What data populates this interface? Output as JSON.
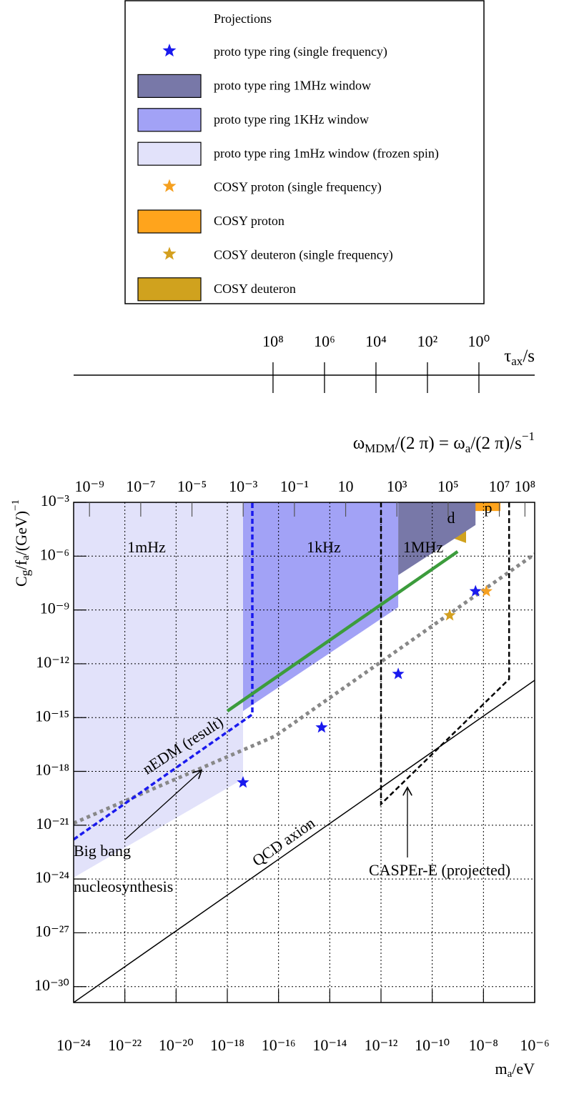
{
  "chart_data": {
    "type": "exclusion",
    "legend_title": "Projections",
    "xlim": [
      1e-24,
      1e-06
    ],
    "ylim": [
      1.3e-31,
      0.001
    ],
    "xscale": "log",
    "yscale": "log",
    "grid": true,
    "xlabel": [
      "m",
      "a",
      "/eV"
    ],
    "ylabel": [
      "C",
      "g",
      "/f",
      "a",
      "/(GeV)",
      "−1"
    ],
    "xticks": [
      {
        "value": 1e-24,
        "label": "10⁻²⁴"
      },
      {
        "value": 1e-22,
        "label": "10⁻²²"
      },
      {
        "value": 1e-20,
        "label": "10⁻²⁰"
      },
      {
        "value": 1e-18,
        "label": "10⁻¹⁸"
      },
      {
        "value": 1e-16,
        "label": "10⁻¹⁶"
      },
      {
        "value": 1e-14,
        "label": "10⁻¹⁴"
      },
      {
        "value": 1e-12,
        "label": "10⁻¹²"
      },
      {
        "value": 1e-10,
        "label": "10⁻¹⁰"
      },
      {
        "value": 1e-08,
        "label": "10⁻⁸"
      },
      {
        "value": 1e-06,
        "label": "10⁻⁶"
      }
    ],
    "yticks": [
      {
        "value": 0.001,
        "label": "10⁻³"
      },
      {
        "value": 1e-06,
        "label": "10⁻⁶"
      },
      {
        "value": 1e-09,
        "label": "10⁻⁹"
      },
      {
        "value": 1e-12,
        "label": "10⁻¹²"
      },
      {
        "value": 1e-15,
        "label": "10⁻¹⁵"
      },
      {
        "value": 1e-18,
        "label": "10⁻¹⁸"
      },
      {
        "value": 1e-21,
        "label": "10⁻²¹"
      },
      {
        "value": 1e-24,
        "label": "10⁻²⁴"
      },
      {
        "value": 1e-27,
        "label": "10⁻²⁷"
      },
      {
        "value": 1e-30,
        "label": "10⁻³⁰"
      }
    ],
    "x2label": [
      "ω",
      "MDM",
      "/(2 π) = ω",
      "a",
      "/(2 π)/s",
      "−1"
    ],
    "x2lim": [
      2.4e-10,
      240000000.0
    ],
    "x2ticks": [
      {
        "value": 1e-09,
        "label": "10⁻⁹"
      },
      {
        "value": 1e-07,
        "label": "10⁻⁷"
      },
      {
        "value": 1e-05,
        "label": "10⁻⁵"
      },
      {
        "value": 0.001,
        "label": "10⁻³"
      },
      {
        "value": 0.1,
        "label": "10⁻¹"
      },
      10,
      {
        "value": 1000,
        "label": "10³"
      },
      {
        "value": 100000,
        "label": "10⁵"
      },
      {
        "value": 10000000,
        "label": "10⁷"
      },
      {
        "value": 100000000,
        "label": "10⁸"
      }
    ],
    "taulabel": [
      "τ",
      "ax",
      "/s"
    ],
    "taulim": [
      5600000000000000.0,
      0.0068
    ],
    "tauticks": [
      {
        "value": 100000000,
        "label": "10⁸"
      },
      {
        "value": 1000000,
        "label": "10⁶"
      },
      {
        "value": 10000,
        "label": "10⁴"
      },
      {
        "value": 100,
        "label": "10²"
      },
      {
        "value": 1,
        "label": "10⁰"
      }
    ],
    "series": [
      {
        "name": "proto type ring (single frequency)",
        "color": "#1a1aee",
        "marker": "star",
        "x": [
          4.1e-18,
          4.8e-15,
          4.7e-12,
          4.9e-09
        ],
        "y": [
          2.4e-19,
          2.8e-16,
          2.7e-13,
          1.1e-08
        ]
      },
      {
        "name": "proto type ring 1MHz window",
        "color": "#7878a8",
        "marker": "box",
        "x": [
          4.7e-12,
          4.9e-09,
          4.9e-09,
          4.7e-12
        ],
        "y": [
          0.001,
          0.001,
          5.4e-05,
          8.7e-08
        ]
      },
      {
        "name": "proto type ring 1KHz window",
        "color": "#a2a2f6",
        "marker": "box",
        "x": [
          4.1e-18,
          4.7e-12,
          4.7e-12,
          4.1e-18
        ],
        "y": [
          0.001,
          0.001,
          1.4e-09,
          2.3e-15
        ]
      },
      {
        "name": "proto type ring 1mHz window (frozen spin)",
        "color": "#e2e2fa",
        "marker": "box",
        "x": [
          1e-24,
          4.1e-18,
          4.1e-18,
          1e-24
        ],
        "y": [
          0.001,
          0.001,
          3.8e-19,
          1.2e-24
        ]
      },
      {
        "name": "COSY proton (single frequency)",
        "color": "#f5a020",
        "marker": "star",
        "x": [
          1.3e-08
        ],
        "y": [
          1.1e-08
        ]
      },
      {
        "name": "COSY proton",
        "color": "#ffa41c",
        "marker": "box",
        "x": [
          4.3e-09,
          4.6e-08,
          4.6e-08,
          4.3e-09
        ],
        "y": [
          0.001,
          0.001,
          0.00033,
          0.00033
        ]
      },
      {
        "name": "COSY deuteron (single frequency)",
        "color": "#d4a020",
        "marker": "star",
        "x": [
          4.8e-10
        ],
        "y": [
          5e-10
        ]
      },
      {
        "name": "COSY deuteron",
        "color": "#d0a21e",
        "marker": "box",
        "x": [
          1.6e-10,
          2.1e-09,
          2.1e-09,
          1.6e-10
        ],
        "y": [
          0.001,
          0.001,
          5.4e-06,
          2.1e-05
        ]
      }
    ],
    "region_labels": [
      "1mHz",
      "1kHz",
      "1MHz",
      "d",
      "p"
    ],
    "curves": [
      {
        "label": [
          "Big bang",
          "nucleosynthesis"
        ],
        "color": "#888888",
        "style": "dotted",
        "x": [
          1e-24,
          7.4e-17,
          1e-06
        ],
        "y": [
          1.3e-21,
          9.3e-17,
          1.3e-06
        ]
      },
      {
        "label": [
          "nEDM (result)"
        ],
        "color": "#1a1aee",
        "style": "dashed",
        "x": [
          1e-24,
          9.5e-18,
          9.5e-18
        ],
        "y": [
          1.6e-22,
          1.5e-15,
          0.001
        ]
      },
      {
        "label": [
          "QCD axion"
        ],
        "color": "#000000",
        "style": "thin",
        "x": [
          1e-24,
          1e-06
        ],
        "y": [
          1.3e-31,
          1.2e-13
        ]
      },
      {
        "label": [
          "CASPEr-E (projected)"
        ],
        "color": "#000000",
        "style": "dashed",
        "x": [
          1e-12,
          1e-12,
          1e-07,
          1e-07
        ],
        "y": [
          0.001,
          1.5e-20,
          1.4e-13,
          0.001
        ]
      },
      {
        "label": [],
        "color": "#3c9c3c",
        "style": "solid",
        "x": [
          1e-18,
          9.8e-10
        ],
        "y": [
          2.3e-15,
          1.8e-06
        ]
      }
    ]
  }
}
